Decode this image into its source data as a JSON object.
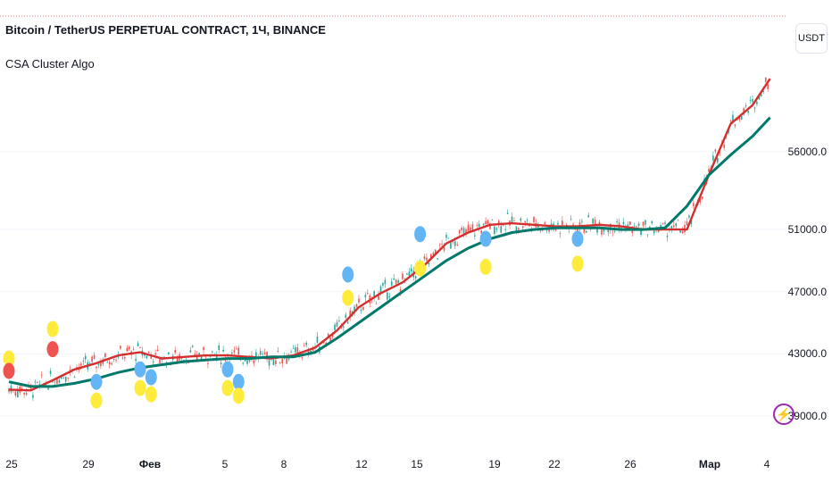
{
  "header": {
    "symbol_title": "Bitcoin / TetherUS PERPETUAL CONTRACT, 1Ч, BINANCE",
    "indicator_name": "CSA Cluster Algo",
    "currency_button": "USDT"
  },
  "icons": {
    "alert": "lightning-bolt-icon"
  },
  "colors": {
    "candle_up": "#26a69a",
    "candle_down": "#ef5350",
    "fast_line": "#d32f2f",
    "slow_line": "#00796b",
    "signal_yellow": "#ffeb3b",
    "signal_blue": "#64b5f6",
    "signal_red": "#ef5350",
    "grid": "#f0f3fa"
  },
  "chart_data": {
    "type": "line",
    "x_tick_labels": [
      "25",
      "29",
      "Фев",
      "5",
      "8",
      "12",
      "15",
      "19",
      "22",
      "26",
      "Мар",
      "4"
    ],
    "y_tick_labels": [
      "56000.0",
      "51000.0",
      "47000.0",
      "43000.0",
      "39000.0"
    ],
    "y_ticks": [
      56000,
      51000,
      47000,
      43000,
      39000
    ],
    "x": [
      25.0,
      26.0,
      27.0,
      28.0,
      29.0,
      30.0,
      31.0,
      32.0,
      33.0,
      34.0,
      35.0,
      36.0,
      37.0,
      38.0,
      39.0,
      40.0,
      41.0,
      42.0,
      43.0,
      44.0,
      45.0,
      46.0,
      47.0,
      48.0,
      49.0,
      50.0,
      51.0,
      52.0,
      53.0,
      54.0,
      55.0,
      56.0,
      57.0,
      58.0,
      59.0,
      59.8
    ],
    "series": [
      {
        "name": "",
        "color": "#d32f2f",
        "values": [
          40700,
          40650,
          41300,
          42000,
          42400,
          42900,
          43100,
          42700,
          42800,
          42900,
          42900,
          42800,
          42700,
          42900,
          43400,
          44500,
          46000,
          46900,
          47600,
          48700,
          50100,
          50800,
          51300,
          51400,
          51300,
          51200,
          51200,
          51300,
          51200,
          51000,
          51000,
          51000,
          54500,
          57800,
          59000,
          60700
        ]
      },
      {
        "name": "",
        "color": "#00796b",
        "values": [
          41200,
          40900,
          40900,
          41100,
          41400,
          41800,
          42100,
          42300,
          42500,
          42600,
          42700,
          42700,
          42800,
          42800,
          43100,
          44000,
          45000,
          46000,
          47000,
          48000,
          49000,
          49800,
          50400,
          50800,
          51000,
          51100,
          51100,
          51100,
          51000,
          51000,
          51100,
          52500,
          54500,
          55800,
          57000,
          58200
        ]
      }
    ],
    "markers": [
      {
        "x": 25.0,
        "y": 42700,
        "color": "yellow"
      },
      {
        "x": 25.0,
        "y": 41900,
        "color": "red"
      },
      {
        "x": 27.0,
        "y": 44600,
        "color": "yellow"
      },
      {
        "x": 27.0,
        "y": 43300,
        "color": "red"
      },
      {
        "x": 29.0,
        "y": 41200,
        "color": "blue"
      },
      {
        "x": 29.0,
        "y": 40000,
        "color": "yellow"
      },
      {
        "x": 31.0,
        "y": 42000,
        "color": "blue"
      },
      {
        "x": 31.0,
        "y": 40800,
        "color": "yellow"
      },
      {
        "x": 31.5,
        "y": 41500,
        "color": "blue"
      },
      {
        "x": 31.5,
        "y": 40400,
        "color": "yellow"
      },
      {
        "x": 35.0,
        "y": 42000,
        "color": "blue"
      },
      {
        "x": 35.0,
        "y": 40800,
        "color": "yellow"
      },
      {
        "x": 35.5,
        "y": 41200,
        "color": "blue"
      },
      {
        "x": 35.5,
        "y": 40300,
        "color": "yellow"
      },
      {
        "x": 40.5,
        "y": 48100,
        "color": "blue"
      },
      {
        "x": 40.5,
        "y": 46600,
        "color": "yellow"
      },
      {
        "x": 43.8,
        "y": 50700,
        "color": "blue"
      },
      {
        "x": 43.8,
        "y": 48500,
        "color": "yellow"
      },
      {
        "x": 46.8,
        "y": 50400,
        "color": "blue"
      },
      {
        "x": 46.8,
        "y": 48600,
        "color": "yellow"
      },
      {
        "x": 51.0,
        "y": 50400,
        "color": "blue"
      },
      {
        "x": 51.0,
        "y": 48800,
        "color": "yellow"
      }
    ]
  }
}
